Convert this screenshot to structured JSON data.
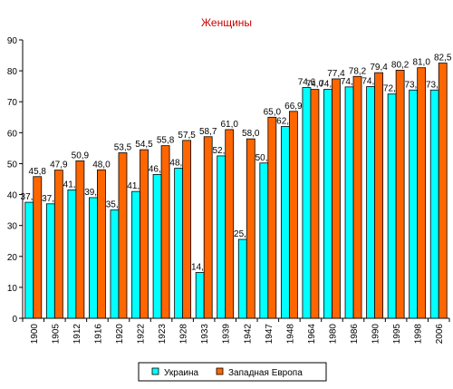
{
  "chart_data": {
    "type": "bar",
    "title": "Женщины",
    "xlabel": "",
    "ylabel": "",
    "ylim": [
      0,
      90
    ],
    "ytick_step": 10,
    "grid": false,
    "legend_position": "bottom",
    "categories": [
      "1900",
      "1905",
      "1912",
      "1916",
      "1920",
      "1922",
      "1923",
      "1928",
      "1933",
      "1939",
      "1942",
      "1947",
      "1948",
      "1964",
      "1980",
      "1986",
      "1990",
      "1995",
      "1998",
      "2006"
    ],
    "series": [
      {
        "name": "Украина",
        "color": "#00ffff",
        "values": [
          37.5,
          37.0,
          41.5,
          39.0,
          35.0,
          41.0,
          46.5,
          48.5,
          14.8,
          52.5,
          25.5,
          50.2,
          62.0,
          74.6,
          74.0,
          74.8,
          74.9,
          72.5,
          73.8,
          73.8
        ],
        "labels": [
          "37,5",
          "37,0",
          "41,5",
          "39,0",
          "35,0",
          "41,0",
          "46,5",
          "48,5",
          "14,8",
          "52,5",
          "25,5",
          "50,2",
          "62,0",
          "74,6",
          "74,0",
          "74,8",
          "74,9",
          "72,5",
          "73,8",
          "73,8"
        ]
      },
      {
        "name": "Западная Европа",
        "color": "#ff6600",
        "values": [
          45.8,
          47.9,
          50.9,
          48.0,
          53.5,
          54.5,
          55.8,
          57.5,
          58.7,
          61.0,
          58.0,
          65.0,
          66.9,
          74.0,
          77.4,
          78.2,
          79.4,
          80.2,
          81.0,
          82.5
        ],
        "labels": [
          "45,8",
          "47,9",
          "50,9",
          "48,0",
          "53,5",
          "54,5",
          "55,8",
          "57,5",
          "58,7",
          "61,0",
          "58,0",
          "65,0",
          "66,9",
          "74,0",
          "77,4",
          "78,2",
          "79,4",
          "80,2",
          "81,0",
          "82,5"
        ]
      }
    ]
  }
}
